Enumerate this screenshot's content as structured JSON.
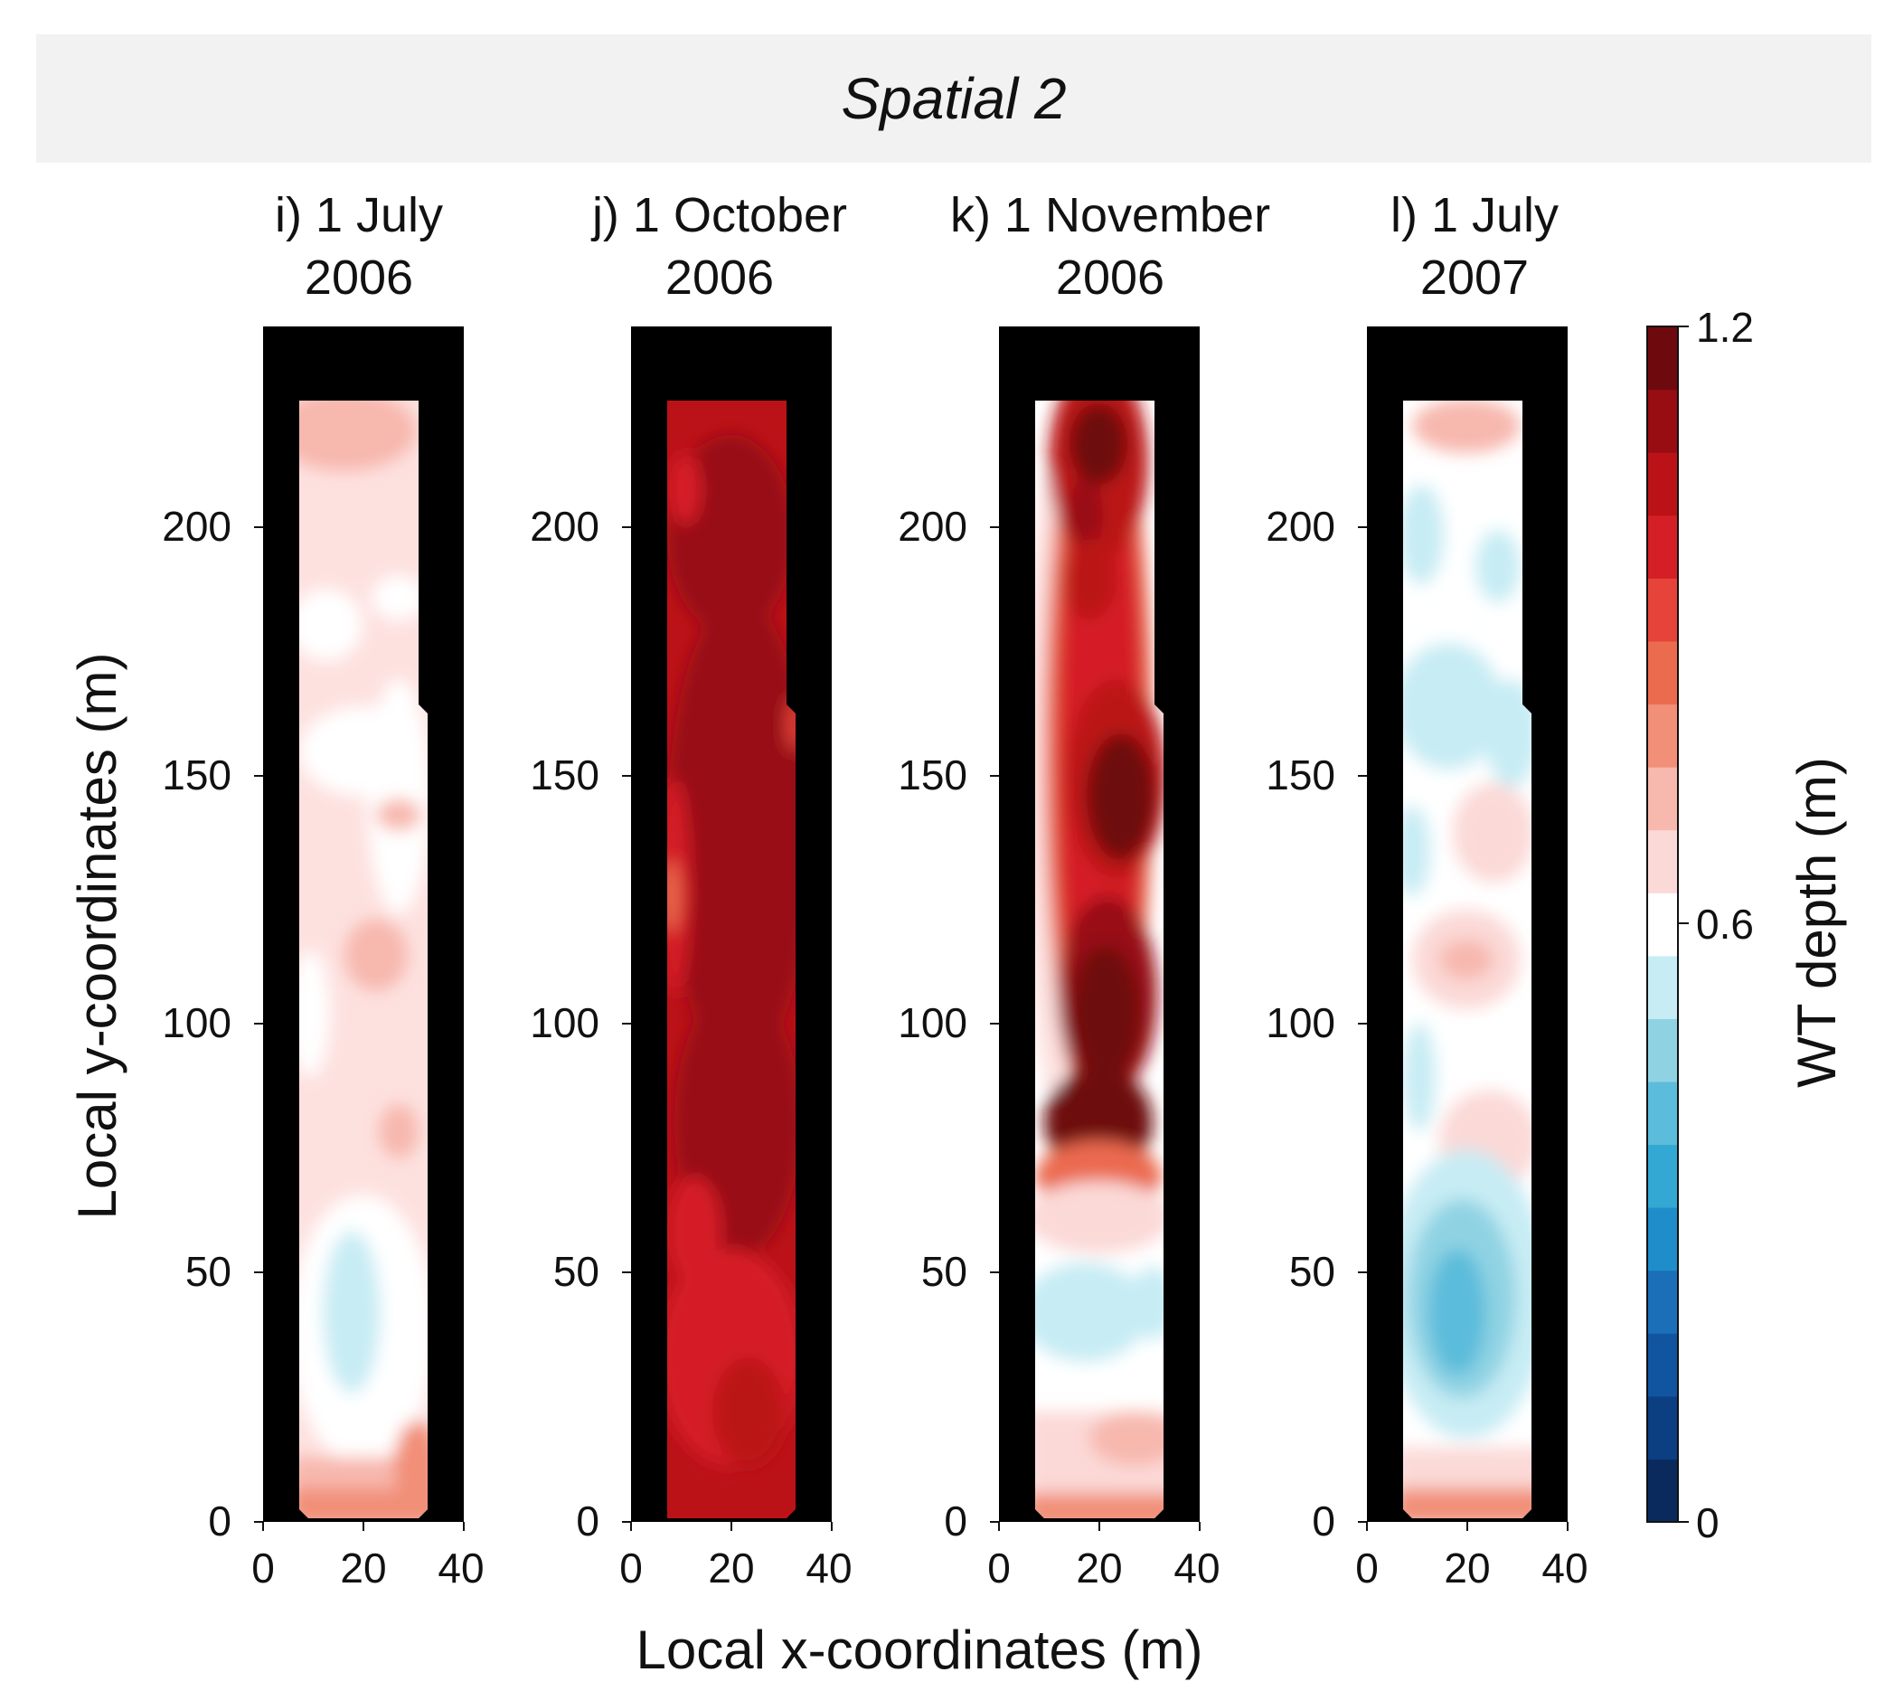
{
  "header": {
    "title": "Spatial 2"
  },
  "chart_data": {
    "type": "heatmap",
    "xlabel": "Local x-coordinates (m)",
    "ylabel": "Local y-coordinates (m)",
    "xlim": [
      0,
      40
    ],
    "ylim": [
      0,
      240
    ],
    "xticks": [
      "0",
      "20",
      "40"
    ],
    "yticks": [
      "0",
      "50",
      "100",
      "150",
      "200"
    ],
    "colorbar": {
      "label": "WT depth (m)",
      "range": [
        0,
        1.2
      ],
      "ticks": [
        "0",
        "0.6",
        "1.2"
      ],
      "colors": [
        "#0a2a5e",
        "#0c3f82",
        "#1155a0",
        "#1a6fb8",
        "#1f8dca",
        "#32a8d2",
        "#5cbcdb",
        "#8fd3e3",
        "#c7ecf4",
        "#ffffff",
        "#fbd9d7",
        "#f7b8ae",
        "#f18f78",
        "#eb6b4f",
        "#e6443a",
        "#d51f26",
        "#bb1218",
        "#980d12",
        "#6e0a0e"
      ]
    },
    "panels": [
      {
        "title_line1": "i) 1 July",
        "title_line2": "2006",
        "summary": "mostly 0.6-0.8 m; shallower (0.5 m) zone near y=20-50 m"
      },
      {
        "title_line1": "j) 1 October",
        "title_line2": "2006",
        "summary": "deep, mostly 1.0-1.2 m throughout"
      },
      {
        "title_line1": "k) 1 November",
        "title_line2": "2006",
        "summary": "deep core 1.0-1.2 m along center from y=70-220 m, edges ~0.6-0.7 m"
      },
      {
        "title_line1": "l) 1 July",
        "title_line2": "2007",
        "summary": "mostly 0.5-0.7 m; shallowest ~0.4 m near y=25-50 m"
      }
    ]
  }
}
